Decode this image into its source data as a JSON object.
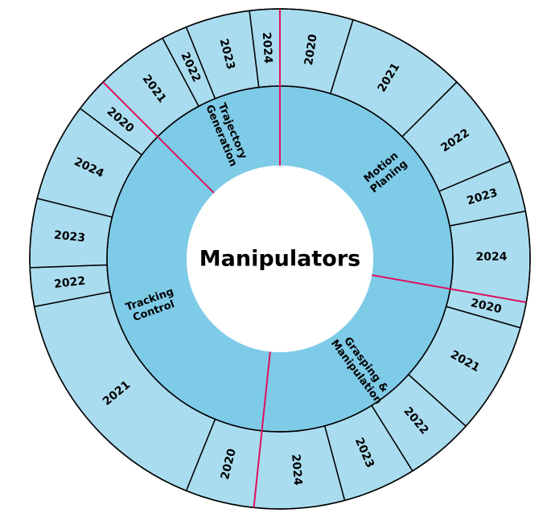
{
  "chart_data": {
    "type": "sunburst",
    "center": "Manipulators",
    "colors": {
      "inner_fill": "#7ecbe8",
      "outer_fill": "#aadcef",
      "stroke": "#000000",
      "divider": "#e0115f",
      "center_fill": "#ffffff"
    },
    "categories": [
      {
        "name": "Motion Planing",
        "lines": [
          "Motion",
          "Planing"
        ],
        "start": 0,
        "end": 100,
        "years": [
          {
            "label": "2020",
            "start": 0,
            "end": 17
          },
          {
            "label": "2021",
            "start": 17,
            "end": 45
          },
          {
            "label": "2022",
            "start": 45,
            "end": 67
          },
          {
            "label": "2023",
            "start": 67,
            "end": 79
          },
          {
            "label": "2024",
            "start": 79,
            "end": 100
          }
        ]
      },
      {
        "name": "Grasping & Manipulation",
        "lines": [
          "Grasping &",
          "Manipulation"
        ],
        "start": 100,
        "end": 186,
        "years": [
          {
            "label": "2020",
            "start": 100,
            "end": 106
          },
          {
            "label": "2021",
            "start": 106,
            "end": 132
          },
          {
            "label": "2022",
            "start": 132,
            "end": 148
          },
          {
            "label": "2023",
            "start": 148,
            "end": 165
          },
          {
            "label": "2024",
            "start": 165,
            "end": 186
          }
        ]
      },
      {
        "name": "Tracking Control",
        "lines": [
          "Tracking",
          "Control"
        ],
        "start": 186,
        "end": 315,
        "years": [
          {
            "label": "2020",
            "start": 186,
            "end": 202
          },
          {
            "label": "2021",
            "start": 202,
            "end": 259
          },
          {
            "label": "2022",
            "start": 259,
            "end": 268
          },
          {
            "label": "2023",
            "start": 268,
            "end": 284
          },
          {
            "label": "2024",
            "start": 284,
            "end": 307
          },
          {
            "label": "2020",
            "start": 307,
            "end": 315
          }
        ]
      },
      {
        "name": "Trajectory Generation",
        "lines": [
          "Trajectory",
          "Generation"
        ],
        "start": 315,
        "end": 360,
        "years": [
          {
            "label": "2021",
            "start": 315,
            "end": 332
          },
          {
            "label": "2022",
            "start": 332,
            "end": 338
          },
          {
            "label": "2023",
            "start": 338,
            "end": 353
          },
          {
            "label": "2024",
            "start": 353,
            "end": 360
          }
        ]
      }
    ]
  }
}
